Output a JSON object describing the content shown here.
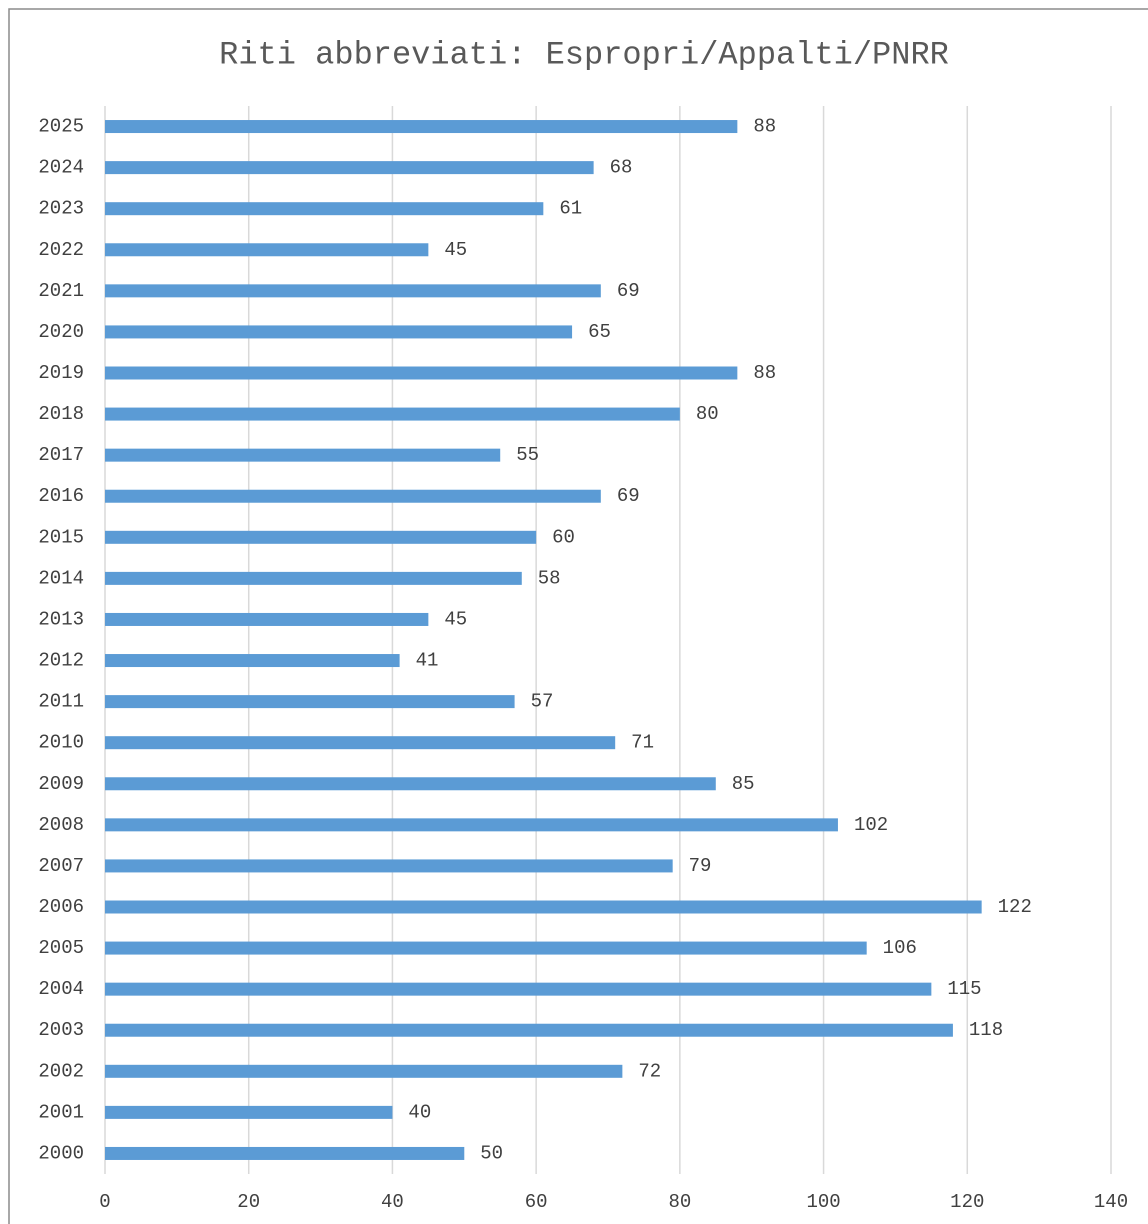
{
  "chart_data": {
    "type": "bar",
    "orientation": "horizontal",
    "title": "Riti abbreviati: Espropri/Appalti/PNRR",
    "categories": [
      "2000",
      "2001",
      "2002",
      "2003",
      "2004",
      "2005",
      "2006",
      "2007",
      "2008",
      "2009",
      "2010",
      "2011",
      "2012",
      "2013",
      "2014",
      "2015",
      "2016",
      "2017",
      "2018",
      "2019",
      "2020",
      "2021",
      "2022",
      "2023",
      "2024",
      "2025"
    ],
    "values": [
      50,
      40,
      72,
      118,
      115,
      106,
      122,
      79,
      102,
      85,
      71,
      57,
      41,
      45,
      58,
      60,
      69,
      55,
      80,
      88,
      65,
      69,
      45,
      61,
      68,
      88
    ],
    "color": "#5b9bd5",
    "xlim": [
      0,
      140
    ],
    "xticks": [
      0,
      20,
      40,
      60,
      80,
      100,
      120,
      140
    ],
    "grid": true
  }
}
